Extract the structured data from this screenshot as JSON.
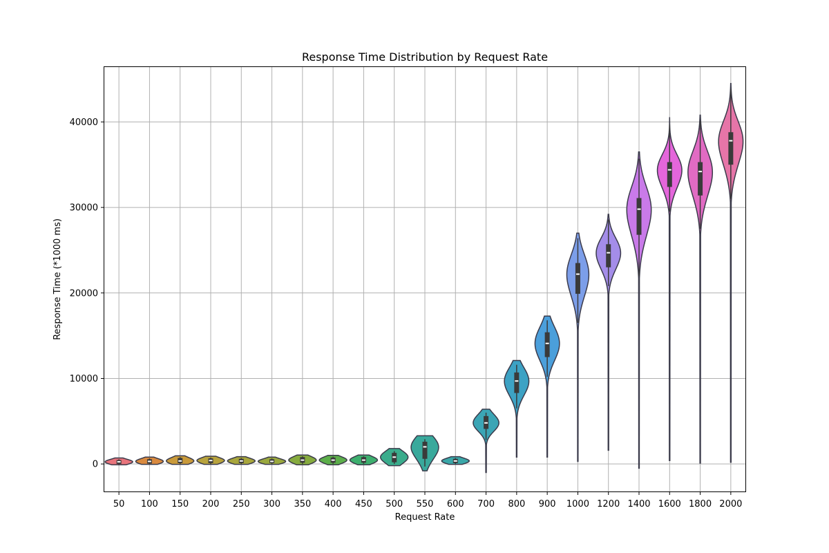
{
  "chart_data": {
    "type": "violin",
    "title": "Response Time Distribution by Request Rate",
    "xlabel": "Request Rate",
    "ylabel": "Response Time (*1000 ms)",
    "ylim": [
      -3300,
      46500
    ],
    "yticks": [
      0,
      10000,
      20000,
      30000,
      40000
    ],
    "grid": true,
    "categories": [
      "50",
      "100",
      "150",
      "200",
      "250",
      "300",
      "350",
      "400",
      "450",
      "500",
      "550",
      "600",
      "700",
      "800",
      "900",
      "1000",
      "1200",
      "1400",
      "1600",
      "1800",
      "2000"
    ],
    "colors": [
      "#e8747c",
      "#d98a3f",
      "#c99a3a",
      "#b8a33d",
      "#a8a63c",
      "#9aa83e",
      "#86ab3e",
      "#5cae4a",
      "#3daf6e",
      "#3aac8c",
      "#39a99c",
      "#3aa7a8",
      "#3ba5b5",
      "#3da2c4",
      "#4b9fdb",
      "#7c9ee9",
      "#a48de9",
      "#c97ae9",
      "#e466db",
      "#e16bc3",
      "#e675a8"
    ],
    "stats": [
      {
        "median": 250,
        "q1": 0,
        "q3": 450,
        "wlow": -50,
        "whigh": 550,
        "vmin": -100,
        "vmax": 700,
        "width": 0.45
      },
      {
        "median": 300,
        "q1": 50,
        "q3": 550,
        "wlow": 0,
        "whigh": 650,
        "vmin": -50,
        "vmax": 800,
        "width": 0.45
      },
      {
        "median": 350,
        "q1": 100,
        "q3": 700,
        "wlow": 0,
        "whigh": 800,
        "vmin": -50,
        "vmax": 950,
        "width": 0.45
      },
      {
        "median": 400,
        "q1": 100,
        "q3": 650,
        "wlow": 0,
        "whigh": 750,
        "vmin": -50,
        "vmax": 900,
        "width": 0.45
      },
      {
        "median": 350,
        "q1": 100,
        "q3": 600,
        "wlow": 0,
        "whigh": 700,
        "vmin": -50,
        "vmax": 850,
        "width": 0.45
      },
      {
        "median": 300,
        "q1": 100,
        "q3": 550,
        "wlow": 0,
        "whigh": 650,
        "vmin": -50,
        "vmax": 800,
        "width": 0.45
      },
      {
        "median": 450,
        "q1": 150,
        "q3": 800,
        "wlow": 0,
        "whigh": 900,
        "vmin": -100,
        "vmax": 1050,
        "width": 0.45
      },
      {
        "median": 450,
        "q1": 150,
        "q3": 750,
        "wlow": 0,
        "whigh": 850,
        "vmin": -100,
        "vmax": 1000,
        "width": 0.45
      },
      {
        "median": 450,
        "q1": 150,
        "q3": 800,
        "wlow": 0,
        "whigh": 900,
        "vmin": -100,
        "vmax": 1050,
        "width": 0.45
      },
      {
        "median": 800,
        "q1": 200,
        "q3": 1300,
        "wlow": 0,
        "whigh": 1500,
        "vmin": -200,
        "vmax": 1800,
        "width": 0.45
      },
      {
        "median": 2000,
        "q1": 600,
        "q3": 2600,
        "wlow": -300,
        "whigh": 2900,
        "vmin": -800,
        "vmax": 3300,
        "width": 0.45
      },
      {
        "median": 350,
        "q1": 100,
        "q3": 600,
        "wlow": 0,
        "whigh": 700,
        "vmin": -50,
        "vmax": 850,
        "width": 0.45
      },
      {
        "median": 4800,
        "q1": 4100,
        "q3": 5600,
        "wlow": 2800,
        "whigh": 6000,
        "vmin": -1000,
        "vmax": 6400,
        "width": 0.42
      },
      {
        "median": 9700,
        "q1": 8300,
        "q3": 10700,
        "wlow": 6500,
        "whigh": 11600,
        "vmin": 800,
        "vmax": 12100,
        "width": 0.4
      },
      {
        "median": 14100,
        "q1": 12500,
        "q3": 15400,
        "wlow": 10200,
        "whigh": 16800,
        "vmin": 800,
        "vmax": 17300,
        "width": 0.4
      },
      {
        "median": 22200,
        "q1": 19900,
        "q3": 23500,
        "wlow": 16500,
        "whigh": 26400,
        "vmin": 300,
        "vmax": 27000,
        "width": 0.36
      },
      {
        "median": 24700,
        "q1": 23000,
        "q3": 25700,
        "wlow": 20800,
        "whigh": 28600,
        "vmin": 1600,
        "vmax": 29200,
        "width": 0.4
      },
      {
        "median": 29800,
        "q1": 26800,
        "q3": 31100,
        "wlow": 22000,
        "whigh": 35700,
        "vmin": -500,
        "vmax": 36500,
        "width": 0.4
      },
      {
        "median": 34400,
        "q1": 32400,
        "q3": 35300,
        "wlow": 29500,
        "whigh": 39700,
        "vmin": 400,
        "vmax": 40500,
        "width": 0.4
      },
      {
        "median": 34200,
        "q1": 31400,
        "q3": 35300,
        "wlow": 27500,
        "whigh": 40100,
        "vmin": 100,
        "vmax": 40800,
        "width": 0.4
      },
      {
        "median": 37800,
        "q1": 35000,
        "q3": 38800,
        "wlow": 31000,
        "whigh": 43800,
        "vmin": 200,
        "vmax": 44500,
        "width": 0.4
      }
    ]
  }
}
